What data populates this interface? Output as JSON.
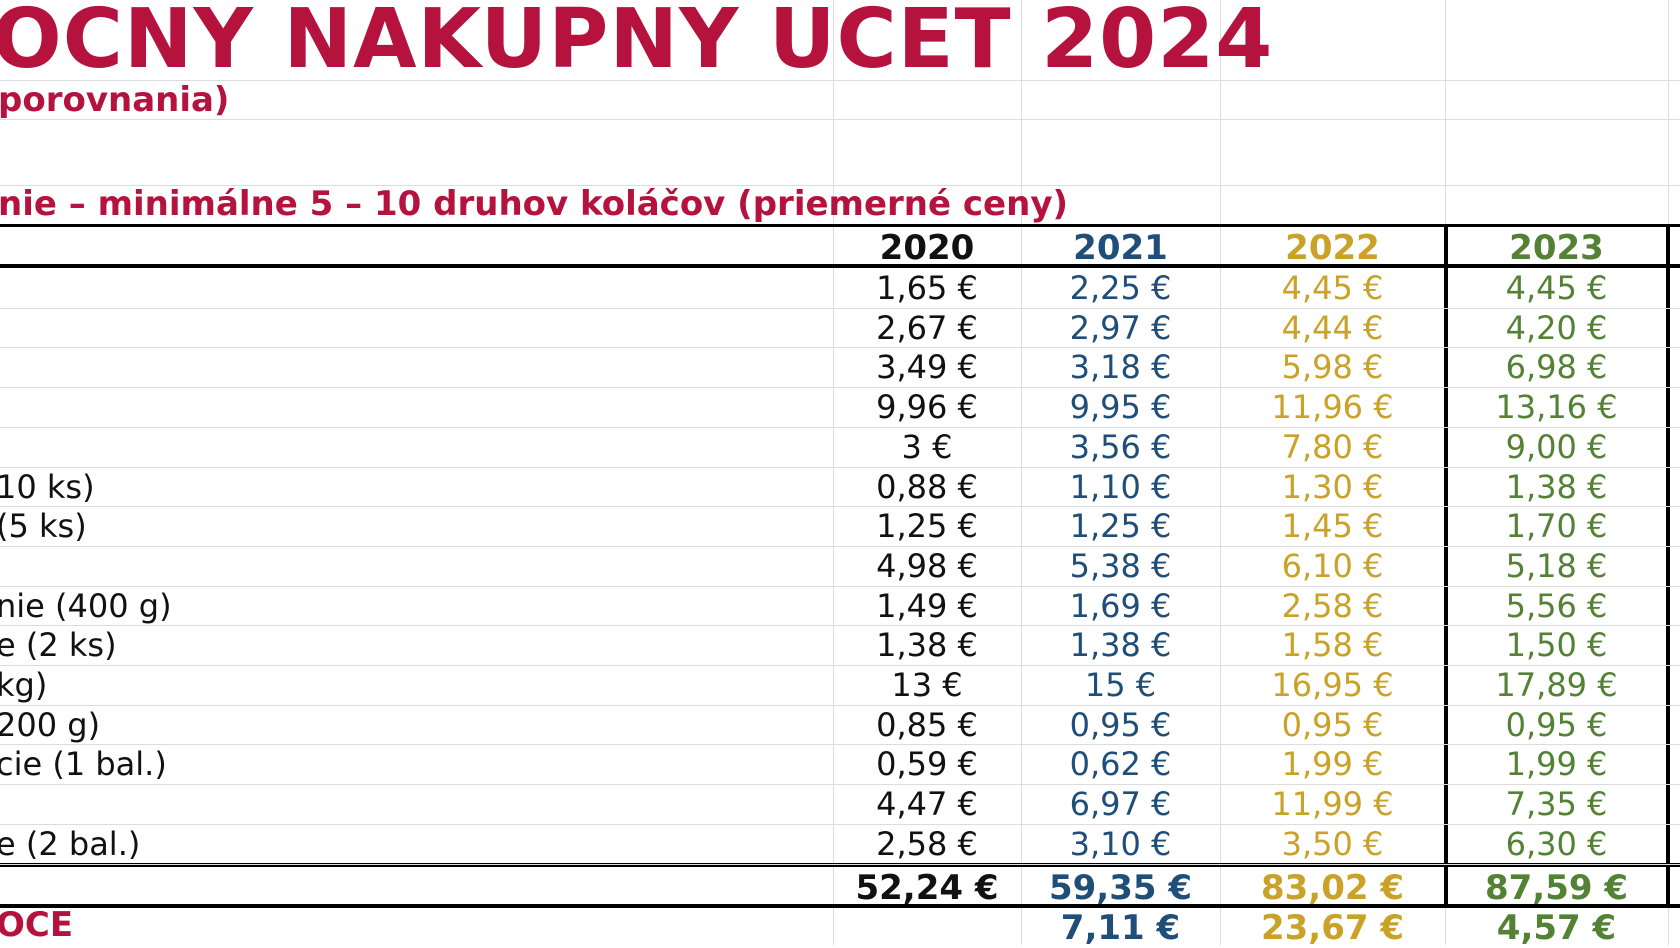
{
  "title": "OCNY NAKUPNY UCET 2024",
  "subtitle": "porovnania)",
  "section_note": "nie – minimálne 5 – 10 druhov koláčov (priemerné ceny)",
  "colors": {
    "title": "#b5123e",
    "y2020": "#111111",
    "y2021": "#1f4e79",
    "y2022": "#c9a227",
    "y2023": "#548235"
  },
  "years": [
    "2020",
    "2021",
    "2022",
    "2023"
  ],
  "rows": [
    {
      "label": "",
      "v": [
        "1,65 €",
        "2,25 €",
        "4,45 €",
        "4,45 €"
      ]
    },
    {
      "label": "",
      "v": [
        "2,67 €",
        "2,97 €",
        "4,44 €",
        "4,20 €"
      ]
    },
    {
      "label": "",
      "v": [
        "3,49 €",
        "3,18 €",
        "5,98 €",
        "6,98 €"
      ]
    },
    {
      "label": "",
      "v": [
        "9,96 €",
        "9,95 €",
        "11,96 €",
        "13,16 €"
      ]
    },
    {
      "label": "",
      "v": [
        "3 €",
        "3,56 €",
        "7,80 €",
        "9,00 €"
      ]
    },
    {
      "label": "10 ks)",
      "v": [
        "0,88 €",
        "1,10 €",
        "1,30 €",
        "1,38 €"
      ]
    },
    {
      "label": "(5 ks)",
      "v": [
        "1,25 €",
        "1,25 €",
        "1,45 €",
        "1,70 €"
      ]
    },
    {
      "label": "",
      "v": [
        "4,98 €",
        "5,38 €",
        "6,10 €",
        "5,18 €"
      ]
    },
    {
      "label": "nie (400 g)",
      "v": [
        "1,49 €",
        "1,69 €",
        "2,58 €",
        "5,56 €"
      ]
    },
    {
      "label": "e (2 ks)",
      "v": [
        "1,38 €",
        "1,38 €",
        "1,58 €",
        "1,50 €"
      ]
    },
    {
      "label": " kg)",
      "v": [
        "13 €",
        "15 €",
        "16,95 €",
        "17,89 €"
      ]
    },
    {
      "label": "200 g)",
      "v": [
        "0,85 €",
        "0,95 €",
        "0,95 €",
        "0,95 €"
      ]
    },
    {
      "label": "cie (1 bal.)",
      "v": [
        "0,59 €",
        "0,62 €",
        "1,99 €",
        "1,99 €"
      ]
    },
    {
      "label": "",
      "v": [
        "4,47 €",
        "6,97 €",
        "11,99 €",
        "7,35 €"
      ]
    },
    {
      "label": "e (2 bal.)",
      "v": [
        "2,58 €",
        "3,10 €",
        "3,50 €",
        "6,30 €"
      ]
    }
  ],
  "totals": [
    "52,24 €",
    "59,35 €",
    "83,02 €",
    "87,59 €"
  ],
  "diff_label": "OCE",
  "diffs": [
    "",
    "7,11 €",
    "23,67 €",
    "4,57 €"
  ]
}
